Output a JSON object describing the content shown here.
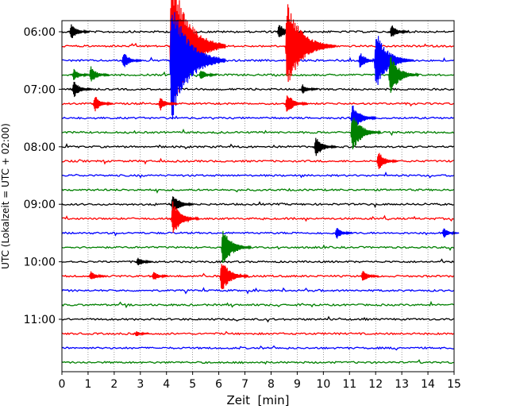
{
  "chart_data": {
    "type": "line",
    "chart_kind": "seismic helicorder (stacked trace lines)",
    "xlabel": "Zeit  [min]",
    "ylabel": "UTC (Lokalzeit = UTC + 02:00)",
    "xlim": [
      0,
      15
    ],
    "x_ticks": [
      "0",
      "1",
      "2",
      "3",
      "4",
      "5",
      "6",
      "7",
      "8",
      "9",
      "10",
      "11",
      "12",
      "13",
      "14",
      "15"
    ],
    "y_ticks": [
      "06:00",
      "07:00",
      "08:00",
      "09:00",
      "10:00",
      "11:00"
    ],
    "vertical_grid": "dotted",
    "trace_colors": [
      "#000000",
      "#ff0000",
      "#0000ff",
      "#008000"
    ],
    "trace_start_time": "06:00",
    "trace_interval_min": 15,
    "trace_count": 24,
    "events": [
      {
        "row": 0,
        "x": 0.3,
        "amp": 0.8
      },
      {
        "row": 0,
        "x": 8.25,
        "amp": 0.8
      },
      {
        "row": 0,
        "x": 12.55,
        "amp": 0.7
      },
      {
        "row": 1,
        "x": 4.13,
        "amp": 6.0
      },
      {
        "row": 1,
        "x": 8.55,
        "amp": 3.5
      },
      {
        "row": 2,
        "x": 2.3,
        "amp": 0.8
      },
      {
        "row": 2,
        "x": 4.13,
        "amp": 5.0
      },
      {
        "row": 2,
        "x": 11.35,
        "amp": 0.8
      },
      {
        "row": 2,
        "x": 11.95,
        "amp": 2.5
      },
      {
        "row": 2,
        "x": 12.6,
        "amp": 0.7
      },
      {
        "row": 3,
        "x": 0.4,
        "amp": 0.6
      },
      {
        "row": 3,
        "x": 1.05,
        "amp": 0.8
      },
      {
        "row": 3,
        "x": 5.25,
        "amp": 0.6
      },
      {
        "row": 3,
        "x": 12.5,
        "amp": 1.7
      },
      {
        "row": 4,
        "x": 0.4,
        "amp": 0.8
      },
      {
        "row": 4,
        "x": 9.15,
        "amp": 0.5
      },
      {
        "row": 5,
        "x": 1.2,
        "amp": 0.8
      },
      {
        "row": 5,
        "x": 3.7,
        "amp": 0.7
      },
      {
        "row": 5,
        "x": 8.55,
        "amp": 1.0
      },
      {
        "row": 6,
        "x": 11.05,
        "amp": 1.3
      },
      {
        "row": 7,
        "x": 11.05,
        "amp": 1.7
      },
      {
        "row": 8,
        "x": 9.65,
        "amp": 1.0
      },
      {
        "row": 9,
        "x": 12.05,
        "amp": 0.9
      },
      {
        "row": 12,
        "x": 4.18,
        "amp": 1.0
      },
      {
        "row": 13,
        "x": 4.18,
        "amp": 1.5
      },
      {
        "row": 14,
        "x": 10.45,
        "amp": 0.6
      },
      {
        "row": 14,
        "x": 14.55,
        "amp": 0.5
      },
      {
        "row": 15,
        "x": 6.1,
        "amp": 1.7
      },
      {
        "row": 16,
        "x": 2.85,
        "amp": 0.5
      },
      {
        "row": 17,
        "x": 1.05,
        "amp": 0.5
      },
      {
        "row": 17,
        "x": 3.45,
        "amp": 0.5
      },
      {
        "row": 17,
        "x": 6.05,
        "amp": 1.5
      },
      {
        "row": 17,
        "x": 11.45,
        "amp": 0.6
      },
      {
        "row": 21,
        "x": 2.8,
        "amp": 0.3
      }
    ]
  }
}
